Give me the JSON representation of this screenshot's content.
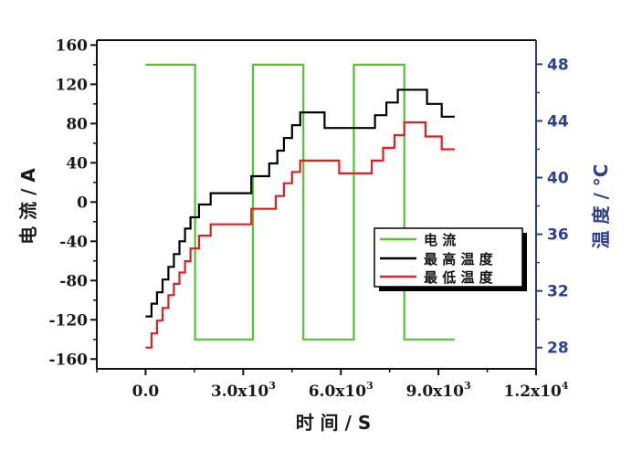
{
  "chart_data": {
    "type": "line",
    "xlabel": "时 间 / S",
    "ylabel_left": "电 流 / A",
    "ylabel_right": "温 度 / °C",
    "xlim": [
      -1500,
      12000
    ],
    "ylim_left": [
      -170,
      165
    ],
    "ylim_right": [
      26.5,
      49.7
    ],
    "x_ticks": [
      {
        "value": 0,
        "label": "0.0"
      },
      {
        "value": 3000,
        "label": "3.0x10",
        "exp": "3"
      },
      {
        "value": 6000,
        "label": "6.0x10",
        "exp": "3"
      },
      {
        "value": 9000,
        "label": "9.0x10",
        "exp": "3"
      },
      {
        "value": 12000,
        "label": "1.2x10",
        "exp": "4"
      }
    ],
    "y_left_ticks": [
      "160",
      "120",
      "80",
      "40",
      "0",
      "-40",
      "-80",
      "-120",
      "-160"
    ],
    "y_left_values": [
      160,
      120,
      80,
      40,
      0,
      -40,
      -80,
      -120,
      -160
    ],
    "y_right_ticks": [
      "48",
      "44",
      "40",
      "36",
      "32",
      "28"
    ],
    "y_right_values": [
      48,
      44,
      40,
      36,
      32,
      28
    ],
    "legend": {
      "placement": "center-right",
      "entries": [
        {
          "label": "电 流",
          "color": "#55c234"
        },
        {
          "label": "最 高 温 度",
          "color": "#000000"
        },
        {
          "label": "最 低 温 度",
          "color": "#e02020"
        }
      ]
    },
    "series": [
      {
        "name": "电 流",
        "axis": "left",
        "color": "#55c234",
        "x": [
          0,
          1520,
          1520,
          3300,
          3300,
          4850,
          4850,
          6400,
          6400,
          7950,
          7950,
          9500
        ],
        "y": [
          140,
          140,
          -140,
          -140,
          140,
          140,
          -140,
          -140,
          140,
          140,
          -140,
          -140
        ]
      },
      {
        "name": "最 高 温 度",
        "axis": "right",
        "color": "#000000",
        "x": [
          0,
          180,
          180,
          350,
          350,
          520,
          520,
          700,
          700,
          870,
          870,
          1040,
          1040,
          1210,
          1210,
          1380,
          1380,
          1640,
          1640,
          2000,
          2000,
          3250,
          3250,
          3800,
          3800,
          4050,
          4050,
          4250,
          4250,
          4500,
          4500,
          4750,
          4750,
          5500,
          5500,
          7050,
          7050,
          7400,
          7400,
          7750,
          7750,
          8650,
          8650,
          9100,
          9100,
          9500
        ],
        "y": [
          30.2,
          30.2,
          31.1,
          31.1,
          31.9,
          31.9,
          32.8,
          32.8,
          33.7,
          33.7,
          34.6,
          34.6,
          35.5,
          35.5,
          36.4,
          36.4,
          37.2,
          37.2,
          38.1,
          38.1,
          38.9,
          38.9,
          40.1,
          40.1,
          41.0,
          41.0,
          41.9,
          41.9,
          42.8,
          42.8,
          43.7,
          43.7,
          44.6,
          44.6,
          43.5,
          43.5,
          44.4,
          44.4,
          45.3,
          45.3,
          46.2,
          46.2,
          45.2,
          45.2,
          44.3,
          44.3
        ]
      },
      {
        "name": "最 低 温 度",
        "axis": "right",
        "color": "#e02020",
        "x": [
          0,
          180,
          180,
          350,
          350,
          520,
          520,
          700,
          700,
          870,
          870,
          1040,
          1040,
          1210,
          1210,
          1380,
          1380,
          1640,
          1640,
          2000,
          2000,
          3250,
          3250,
          4000,
          4000,
          4250,
          4250,
          4500,
          4500,
          4750,
          4750,
          5950,
          5950,
          6950,
          6950,
          7300,
          7300,
          7650,
          7650,
          7950,
          7950,
          8600,
          8600,
          9100,
          9100,
          9500
        ],
        "y": [
          28.0,
          28.0,
          29.0,
          29.0,
          29.9,
          29.9,
          30.8,
          30.8,
          31.7,
          31.7,
          32.5,
          32.5,
          33.3,
          33.3,
          34.1,
          34.1,
          35.0,
          35.0,
          35.9,
          35.9,
          36.7,
          36.7,
          37.8,
          37.8,
          38.7,
          38.7,
          39.6,
          39.6,
          40.4,
          40.4,
          41.2,
          41.2,
          40.3,
          40.3,
          41.2,
          41.2,
          42.1,
          42.1,
          43.0,
          43.0,
          43.9,
          43.9,
          42.9,
          42.9,
          42.0,
          42.0
        ]
      }
    ]
  }
}
